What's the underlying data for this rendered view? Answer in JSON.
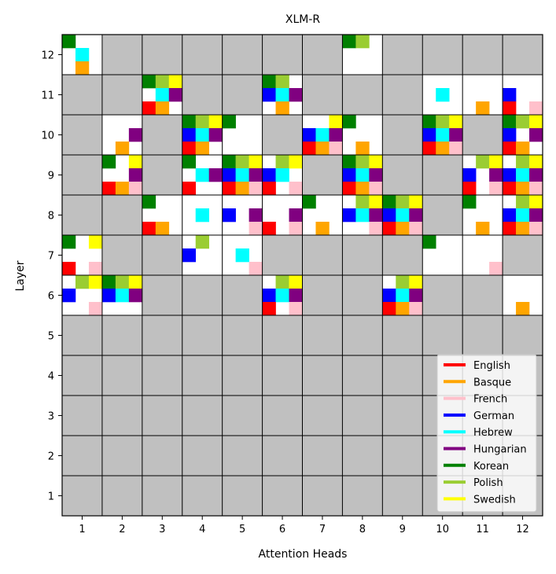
{
  "chart_data": {
    "type": "heatmap",
    "title": "XLM-R",
    "xlabel": "Attention Heads",
    "ylabel": "Layer",
    "x_ticks": [
      "1",
      "2",
      "3",
      "4",
      "5",
      "6",
      "7",
      "8",
      "9",
      "10",
      "11",
      "12"
    ],
    "y_ticks": [
      "1",
      "2",
      "3",
      "4",
      "5",
      "6",
      "7",
      "8",
      "9",
      "10",
      "11",
      "12"
    ],
    "inactive_color": "#c0c0c0",
    "active_color": "#ffffff",
    "languages": [
      {
        "name": "English",
        "color": "#ff0000"
      },
      {
        "name": "Basque",
        "color": "#ffa500"
      },
      {
        "name": "French",
        "color": "#ffc0cb"
      },
      {
        "name": "German",
        "color": "#0000ff"
      },
      {
        "name": "Hebrew",
        "color": "#00ffff"
      },
      {
        "name": "Hungarian",
        "color": "#800080"
      },
      {
        "name": "Korean",
        "color": "#008000"
      },
      {
        "name": "Polish",
        "color": "#9acd32"
      },
      {
        "name": "Swedish",
        "color": "#ffff00"
      }
    ],
    "legend_position": "lower-right",
    "cells": [
      {
        "layer": 12,
        "head": 1,
        "languages": [
          "Korean",
          "Hebrew",
          "Basque"
        ]
      },
      {
        "layer": 12,
        "head": 8,
        "languages": [
          "Korean",
          "Polish"
        ]
      },
      {
        "layer": 11,
        "head": 3,
        "languages": [
          "Korean",
          "Polish",
          "Swedish",
          "Hebrew",
          "Hungarian",
          "English",
          "Basque"
        ]
      },
      {
        "layer": 11,
        "head": 6,
        "languages": [
          "Korean",
          "Polish",
          "German",
          "Hebrew",
          "Hungarian",
          "Basque"
        ]
      },
      {
        "layer": 11,
        "head": 10,
        "languages": [
          "Hebrew"
        ]
      },
      {
        "layer": 11,
        "head": 11,
        "languages": [
          "Basque"
        ]
      },
      {
        "layer": 11,
        "head": 12,
        "languages": [
          "German",
          "English",
          "French"
        ]
      },
      {
        "layer": 10,
        "head": 2,
        "languages": [
          "Hungarian",
          "Basque"
        ]
      },
      {
        "layer": 10,
        "head": 4,
        "languages": [
          "Korean",
          "Polish",
          "Swedish",
          "German",
          "Hebrew",
          "Hungarian",
          "English",
          "Basque"
        ]
      },
      {
        "layer": 10,
        "head": 5,
        "languages": [
          "Korean"
        ]
      },
      {
        "layer": 10,
        "head": 7,
        "languages": [
          "Swedish",
          "German",
          "Hebrew",
          "Hungarian",
          "English",
          "Basque",
          "French"
        ]
      },
      {
        "layer": 10,
        "head": 8,
        "languages": [
          "Korean",
          "Basque"
        ]
      },
      {
        "layer": 10,
        "head": 10,
        "languages": [
          "Korean",
          "Polish",
          "Swedish",
          "German",
          "Hebrew",
          "Hungarian",
          "English",
          "Basque",
          "French"
        ]
      },
      {
        "layer": 10,
        "head": 12,
        "languages": [
          "Korean",
          "Polish",
          "Swedish",
          "German",
          "Hungarian",
          "English",
          "Basque"
        ]
      },
      {
        "layer": 9,
        "head": 2,
        "languages": [
          "Korean",
          "Swedish",
          "Hungarian",
          "English",
          "Basque",
          "French"
        ]
      },
      {
        "layer": 9,
        "head": 4,
        "languages": [
          "Korean",
          "Hebrew",
          "Hungarian",
          "English"
        ]
      },
      {
        "layer": 9,
        "head": 5,
        "languages": [
          "Korean",
          "Polish",
          "Swedish",
          "German",
          "Hebrew",
          "Hungarian",
          "English",
          "Basque",
          "French"
        ]
      },
      {
        "layer": 9,
        "head": 6,
        "languages": [
          "Polish",
          "Swedish",
          "German",
          "Hebrew",
          "English",
          "French"
        ]
      },
      {
        "layer": 9,
        "head": 8,
        "languages": [
          "Korean",
          "Polish",
          "Swedish",
          "German",
          "Hebrew",
          "Hungarian",
          "English",
          "Basque",
          "French"
        ]
      },
      {
        "layer": 9,
        "head": 11,
        "languages": [
          "Polish",
          "Swedish",
          "German",
          "Hungarian",
          "English",
          "French"
        ]
      },
      {
        "layer": 9,
        "head": 12,
        "languages": [
          "Polish",
          "Swedish",
          "German",
          "Hebrew",
          "Hungarian",
          "English",
          "Basque",
          "French"
        ]
      },
      {
        "layer": 8,
        "head": 3,
        "languages": [
          "Korean",
          "English",
          "Basque"
        ]
      },
      {
        "layer": 8,
        "head": 4,
        "languages": [
          "Hebrew"
        ]
      },
      {
        "layer": 8,
        "head": 5,
        "languages": [
          "German",
          "Hungarian",
          "French"
        ]
      },
      {
        "layer": 8,
        "head": 6,
        "languages": [
          "Hungarian",
          "English",
          "French"
        ]
      },
      {
        "layer": 8,
        "head": 7,
        "languages": [
          "Korean",
          "Basque"
        ]
      },
      {
        "layer": 8,
        "head": 8,
        "languages": [
          "Polish",
          "Swedish",
          "German",
          "Hebrew",
          "Hungarian",
          "French"
        ]
      },
      {
        "layer": 8,
        "head": 9,
        "languages": [
          "Korean",
          "Polish",
          "Swedish",
          "German",
          "Hebrew",
          "Hungarian",
          "English",
          "Basque",
          "French"
        ]
      },
      {
        "layer": 8,
        "head": 11,
        "languages": [
          "Korean",
          "Basque"
        ]
      },
      {
        "layer": 8,
        "head": 12,
        "languages": [
          "Polish",
          "Swedish",
          "German",
          "Hebrew",
          "Hungarian",
          "English",
          "Basque",
          "French"
        ]
      },
      {
        "layer": 7,
        "head": 1,
        "languages": [
          "Korean",
          "Swedish",
          "English",
          "French"
        ]
      },
      {
        "layer": 7,
        "head": 4,
        "languages": [
          "Polish",
          "German"
        ]
      },
      {
        "layer": 7,
        "head": 5,
        "languages": [
          "Hebrew",
          "French"
        ]
      },
      {
        "layer": 7,
        "head": 10,
        "languages": [
          "Korean"
        ]
      },
      {
        "layer": 7,
        "head": 11,
        "languages": [
          "French"
        ]
      },
      {
        "layer": 6,
        "head": 1,
        "languages": [
          "Polish",
          "Swedish",
          "German",
          "French"
        ]
      },
      {
        "layer": 6,
        "head": 2,
        "languages": [
          "Korean",
          "Polish",
          "Swedish",
          "German",
          "Hebrew",
          "Hungarian"
        ]
      },
      {
        "layer": 6,
        "head": 6,
        "languages": [
          "Polish",
          "Swedish",
          "German",
          "Hebrew",
          "Hungarian",
          "English",
          "French"
        ]
      },
      {
        "layer": 6,
        "head": 9,
        "languages": [
          "Polish",
          "Swedish",
          "German",
          "Hebrew",
          "Hungarian",
          "English",
          "Basque",
          "French"
        ]
      },
      {
        "layer": 6,
        "head": 12,
        "languages": [
          "Basque"
        ]
      }
    ]
  }
}
